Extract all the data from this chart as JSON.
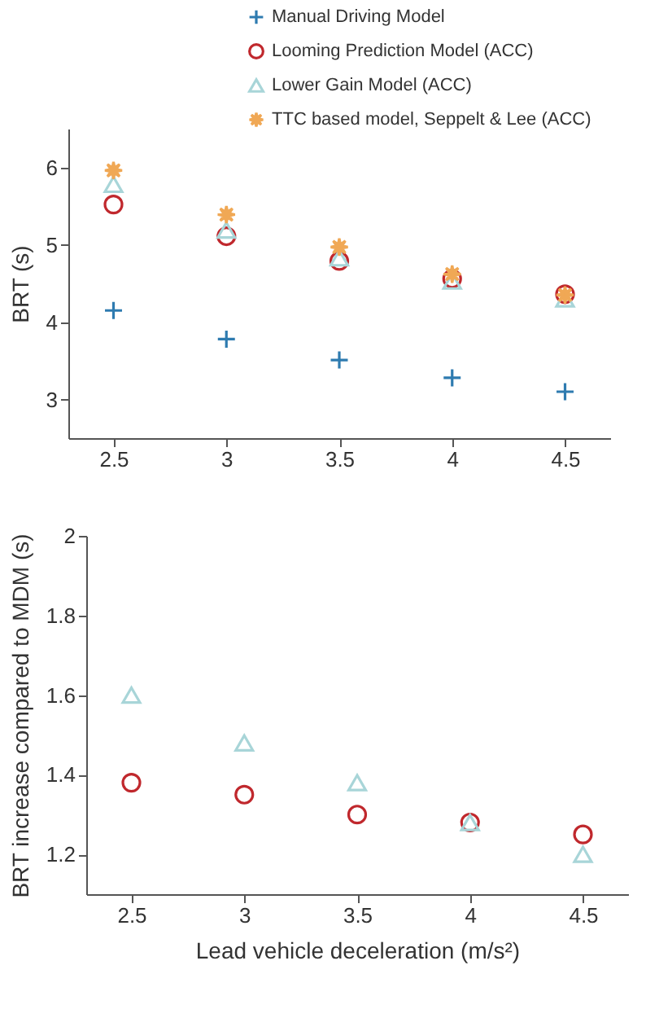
{
  "chart_data": [
    {
      "type": "scatter",
      "ylabel": "BRT (s)",
      "x": [
        2.5,
        3,
        3.5,
        4,
        4.5
      ],
      "xlim": [
        2.3,
        4.7
      ],
      "xticks": [
        2.5,
        3,
        3.5,
        4,
        4.5
      ],
      "ylim": [
        2.5,
        6.5
      ],
      "yticks": [
        3,
        4,
        5,
        6
      ],
      "grid": false,
      "legend": "top right",
      "series": [
        {
          "name": "Manual Driving Model",
          "color": "#2e7bb0",
          "marker": "cross",
          "values": [
            4.15,
            3.78,
            3.51,
            3.28,
            3.1
          ]
        },
        {
          "name": "Looming Prediction Model (ACC)",
          "color": "#c0282d",
          "marker": "circle",
          "values": [
            5.52,
            5.11,
            4.79,
            4.56,
            4.36
          ]
        },
        {
          "name": "Lower Gain Model (ACC)",
          "color": "#a8d5d8",
          "marker": "triangle",
          "values": [
            5.78,
            5.19,
            4.83,
            4.53,
            4.3
          ]
        },
        {
          "name": "TTC based model, Seppelt & Lee (ACC)",
          "color": "#f0a855",
          "marker": "star",
          "values": [
            5.96,
            5.39,
            4.97,
            4.62,
            4.35
          ]
        }
      ]
    },
    {
      "type": "scatter",
      "xlabel": "Lead vehicle deceleration (m/s²)",
      "ylabel": "BRT increase compared to MDM (s)",
      "x": [
        2.5,
        3,
        3.5,
        4,
        4.5
      ],
      "xlim": [
        2.3,
        4.7
      ],
      "xticks": [
        2.5,
        3,
        3.5,
        4,
        4.5
      ],
      "ylim": [
        1.1,
        2
      ],
      "yticks": [
        1.2,
        1.4,
        1.6,
        1.8,
        2
      ],
      "grid": false,
      "series": [
        {
          "color": "#c0282d",
          "marker": "circle",
          "values": [
            1.38,
            1.35,
            1.3,
            1.28,
            1.25
          ]
        },
        {
          "color": "#a8d5d8",
          "marker": "triangle",
          "values": [
            1.6,
            1.48,
            1.38,
            1.28,
            1.2
          ]
        }
      ]
    }
  ]
}
